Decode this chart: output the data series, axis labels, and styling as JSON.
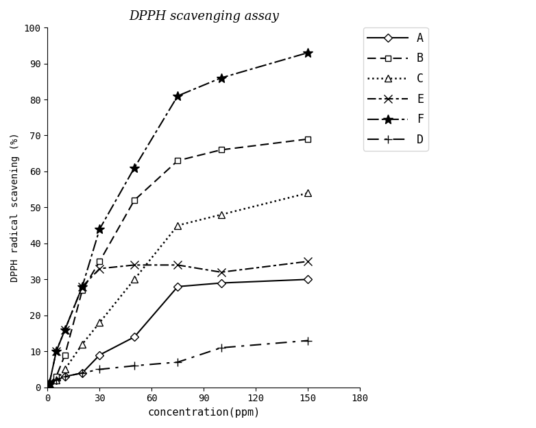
{
  "title": "DPPH scavenging assay",
  "xlabel": "concentration(ppm)",
  "ylabel": "DPPH radical scavening (%)",
  "xlim": [
    0,
    180
  ],
  "ylim": [
    0,
    100
  ],
  "xticks": [
    0,
    30,
    60,
    90,
    120,
    150,
    180
  ],
  "yticks": [
    0,
    10,
    20,
    30,
    40,
    50,
    60,
    70,
    80,
    90,
    100
  ],
  "series": {
    "A": {
      "x": [
        1,
        5,
        10,
        20,
        30,
        50,
        75,
        100,
        150
      ],
      "y": [
        1,
        2,
        3,
        4,
        9,
        14,
        28,
        29,
        30
      ],
      "linestyle": "solid",
      "marker": "D",
      "markersize": 6,
      "color": "#000000",
      "linewidth": 1.5,
      "markerfacecolor": "white",
      "markeredgecolor": "#000000",
      "label": "A"
    },
    "B": {
      "x": [
        1,
        5,
        10,
        20,
        30,
        50,
        75,
        100,
        150
      ],
      "y": [
        1,
        3,
        9,
        27,
        35,
        52,
        63,
        66,
        69
      ],
      "linestyle": "dashed",
      "marker": "s",
      "markersize": 6,
      "color": "#000000",
      "linewidth": 1.5,
      "markerfacecolor": "white",
      "markeredgecolor": "#000000",
      "label": "B"
    },
    "C": {
      "x": [
        1,
        5,
        10,
        20,
        30,
        50,
        75,
        100,
        150
      ],
      "y": [
        1,
        2,
        5,
        12,
        18,
        30,
        45,
        48,
        54
      ],
      "linestyle": "dotted",
      "marker": "^",
      "markersize": 7,
      "color": "#000000",
      "linewidth": 1.8,
      "markerfacecolor": "white",
      "markeredgecolor": "#000000",
      "label": "C"
    },
    "E": {
      "x": [
        1,
        5,
        10,
        20,
        30,
        50,
        75,
        100,
        150
      ],
      "y": [
        1,
        10,
        16,
        28,
        33,
        34,
        34,
        32,
        35
      ],
      "linestyle": "dashdot",
      "marker": "x",
      "markersize": 8,
      "color": "#000000",
      "linewidth": 1.5,
      "markerfacecolor": "#000000",
      "markeredgecolor": "#000000",
      "label": "E"
    },
    "F": {
      "x": [
        1,
        5,
        10,
        20,
        30,
        50,
        75,
        100,
        150
      ],
      "y": [
        1,
        10,
        16,
        28,
        44,
        61,
        81,
        86,
        93
      ],
      "linestyle": "dashdot",
      "marker": "*",
      "markersize": 10,
      "color": "#000000",
      "linewidth": 1.5,
      "markerfacecolor": "#000000",
      "markeredgecolor": "#000000",
      "label": "F"
    },
    "D": {
      "x": [
        1,
        5,
        10,
        20,
        30,
        50,
        75,
        100,
        150
      ],
      "y": [
        1,
        2,
        3,
        4,
        5,
        6,
        7,
        11,
        13
      ],
      "linestyle": "dashed",
      "marker": "+",
      "markersize": 9,
      "color": "#000000",
      "linewidth": 1.5,
      "markerfacecolor": "#000000",
      "markeredgecolor": "#000000",
      "label": "D"
    }
  },
  "legend_order": [
    "A",
    "B",
    "C",
    "E",
    "F",
    "D"
  ],
  "background_color": "#ffffff"
}
